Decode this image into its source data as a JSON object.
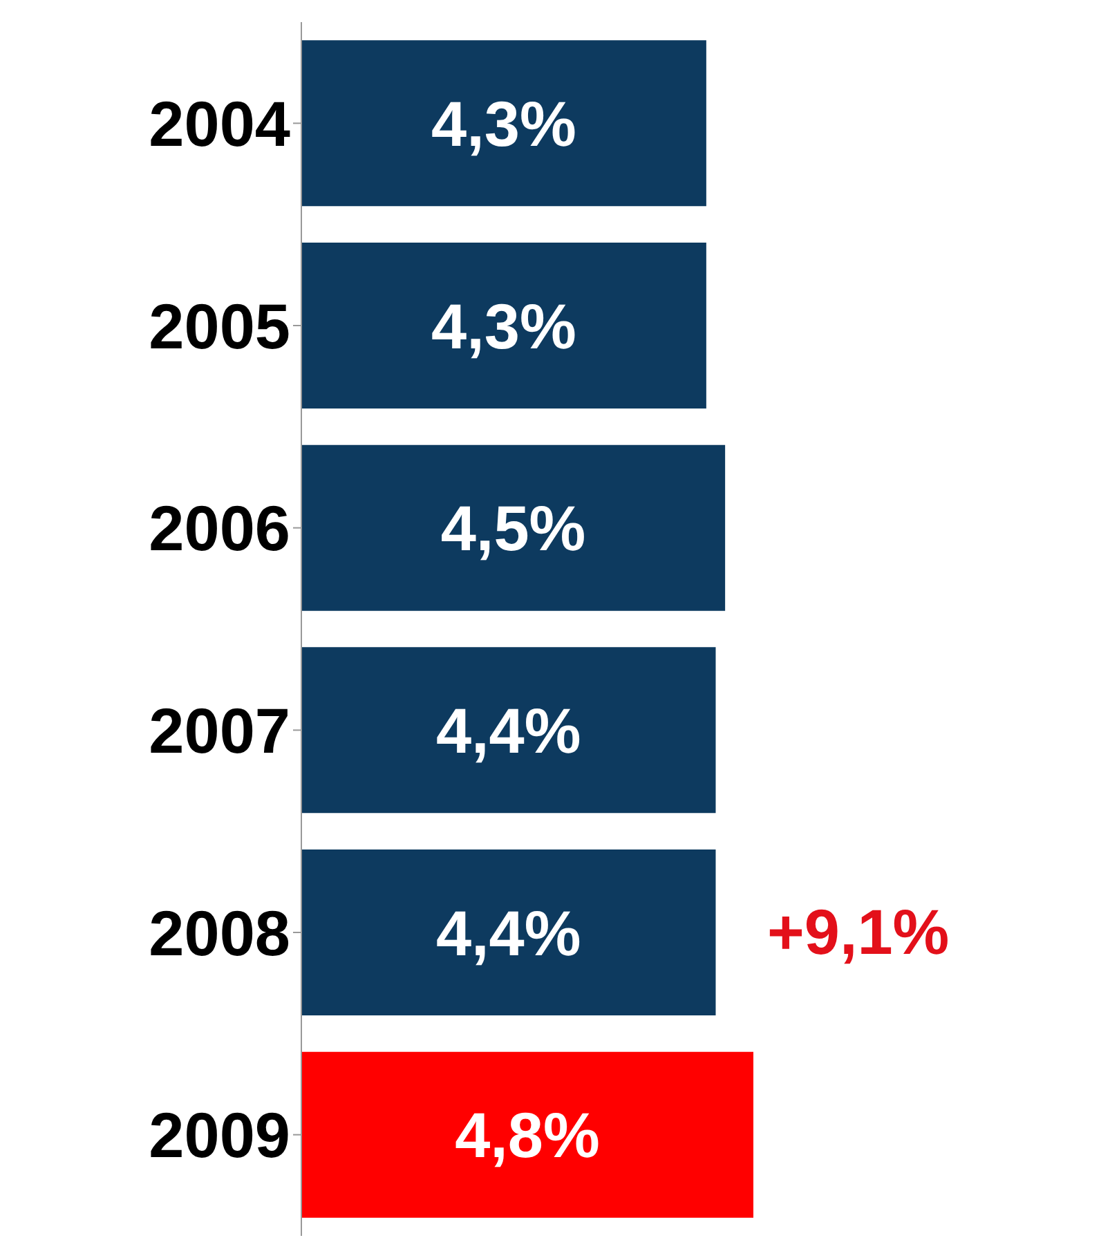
{
  "chart_data": {
    "type": "bar",
    "orientation": "horizontal",
    "categories": [
      "2004",
      "2005",
      "2006",
      "2007",
      "2008",
      "2009"
    ],
    "values": [
      4.3,
      4.3,
      4.5,
      4.4,
      4.4,
      4.8
    ],
    "value_labels": [
      "4,3%",
      "4,3%",
      "4,5%",
      "4,4%",
      "4,4%",
      "4,8%"
    ],
    "colors": [
      "#0d3a5f",
      "#0d3a5f",
      "#0d3a5f",
      "#0d3a5f",
      "#0d3a5f",
      "#ff0000"
    ],
    "annotations": [
      "+9,1%"
    ]
  }
}
